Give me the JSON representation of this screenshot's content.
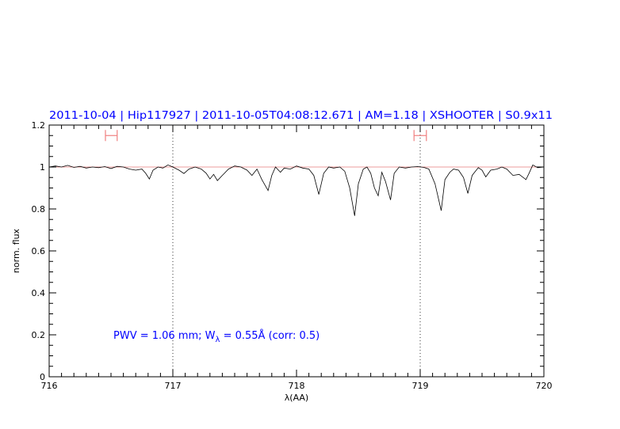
{
  "chart_data": {
    "type": "line",
    "title": "2011-10-04 | Hip117927 | 2011-10-05T04:08:12.671 | AM=1.18 | XSHOOTER | S0.9x11",
    "xlabel": "λ(AA)",
    "ylabel": "norm. flux",
    "xlim": [
      716,
      720
    ],
    "ylim": [
      0,
      1.2
    ],
    "xticks": [
      716,
      717,
      718,
      719,
      720
    ],
    "yticks": [
      0,
      0.2,
      0.4,
      0.6,
      0.8,
      1,
      1.2
    ],
    "xtick_labels": [
      "716",
      "717",
      "718",
      "719",
      "720"
    ],
    "ytick_labels": [
      "0",
      "0.2",
      "0.4",
      "0.6",
      "0.8",
      "1",
      "1.2"
    ],
    "continuum_level": 1.0,
    "vertical_markers": [
      717,
      719
    ],
    "intervals": [
      [
        716.455,
        716.55
      ],
      [
        718.95,
        719.05
      ]
    ],
    "interval_level": 1.15,
    "annotation": {
      "pre": "PWV = 1.06 mm; W",
      "sub": "λ",
      "post": " = 0.55Å (corr: 0.5)"
    },
    "colors": {
      "spectrum": "#000000",
      "continuum": "#e87a7a",
      "intervals": "#f08080",
      "title": "#0000ff"
    },
    "spectrum": {
      "x": [
        716.0,
        716.05,
        716.1,
        716.15,
        716.2,
        716.25,
        716.3,
        716.35,
        716.4,
        716.45,
        716.5,
        716.55,
        716.6,
        716.65,
        716.7,
        716.75,
        716.78,
        716.81,
        716.84,
        716.88,
        716.92,
        716.96,
        717.0,
        717.05,
        717.09,
        717.13,
        717.18,
        717.23,
        717.27,
        717.3,
        717.33,
        717.36,
        717.4,
        717.45,
        717.5,
        717.55,
        717.6,
        717.64,
        717.68,
        717.72,
        717.77,
        717.8,
        717.83,
        717.87,
        717.9,
        717.95,
        718.0,
        718.05,
        718.1,
        718.14,
        718.18,
        718.22,
        718.26,
        718.3,
        718.35,
        718.39,
        718.43,
        718.47,
        718.5,
        718.54,
        718.57,
        718.6,
        718.63,
        718.66,
        718.69,
        718.72,
        718.76,
        718.79,
        718.83,
        718.88,
        718.93,
        718.98,
        719.03,
        719.07,
        719.12,
        719.17,
        719.2,
        719.24,
        719.27,
        719.31,
        719.35,
        719.385,
        719.42,
        719.47,
        719.5,
        719.53,
        719.57,
        719.62,
        719.66,
        719.7,
        719.75,
        719.8,
        719.855,
        719.88,
        719.91,
        719.95,
        720.0
      ],
      "y": [
        1.0,
        1.005,
        1.0,
        1.008,
        0.998,
        1.003,
        0.995,
        1.0,
        0.997,
        1.002,
        0.993,
        1.003,
        1.0,
        0.99,
        0.985,
        0.99,
        0.97,
        0.943,
        0.985,
        1.0,
        0.995,
        1.01,
        1.0,
        0.985,
        0.969,
        0.99,
        1.0,
        0.99,
        0.97,
        0.943,
        0.965,
        0.935,
        0.96,
        0.99,
        1.005,
        1.0,
        0.985,
        0.96,
        0.99,
        0.94,
        0.888,
        0.96,
        1.0,
        0.975,
        0.995,
        0.99,
        1.005,
        0.995,
        0.99,
        0.96,
        0.869,
        0.97,
        1.0,
        0.995,
        1.0,
        0.98,
        0.9,
        0.767,
        0.92,
        0.99,
        1.0,
        0.97,
        0.9,
        0.863,
        0.975,
        0.93,
        0.843,
        0.97,
        1.0,
        0.995,
        1.0,
        1.002,
        0.998,
        0.99,
        0.92,
        0.792,
        0.94,
        0.975,
        0.99,
        0.985,
        0.95,
        0.874,
        0.96,
        0.997,
        0.985,
        0.953,
        0.985,
        0.99,
        1.0,
        0.99,
        0.96,
        0.965,
        0.94,
        0.97,
        1.01,
        0.997,
        1.0
      ]
    }
  }
}
